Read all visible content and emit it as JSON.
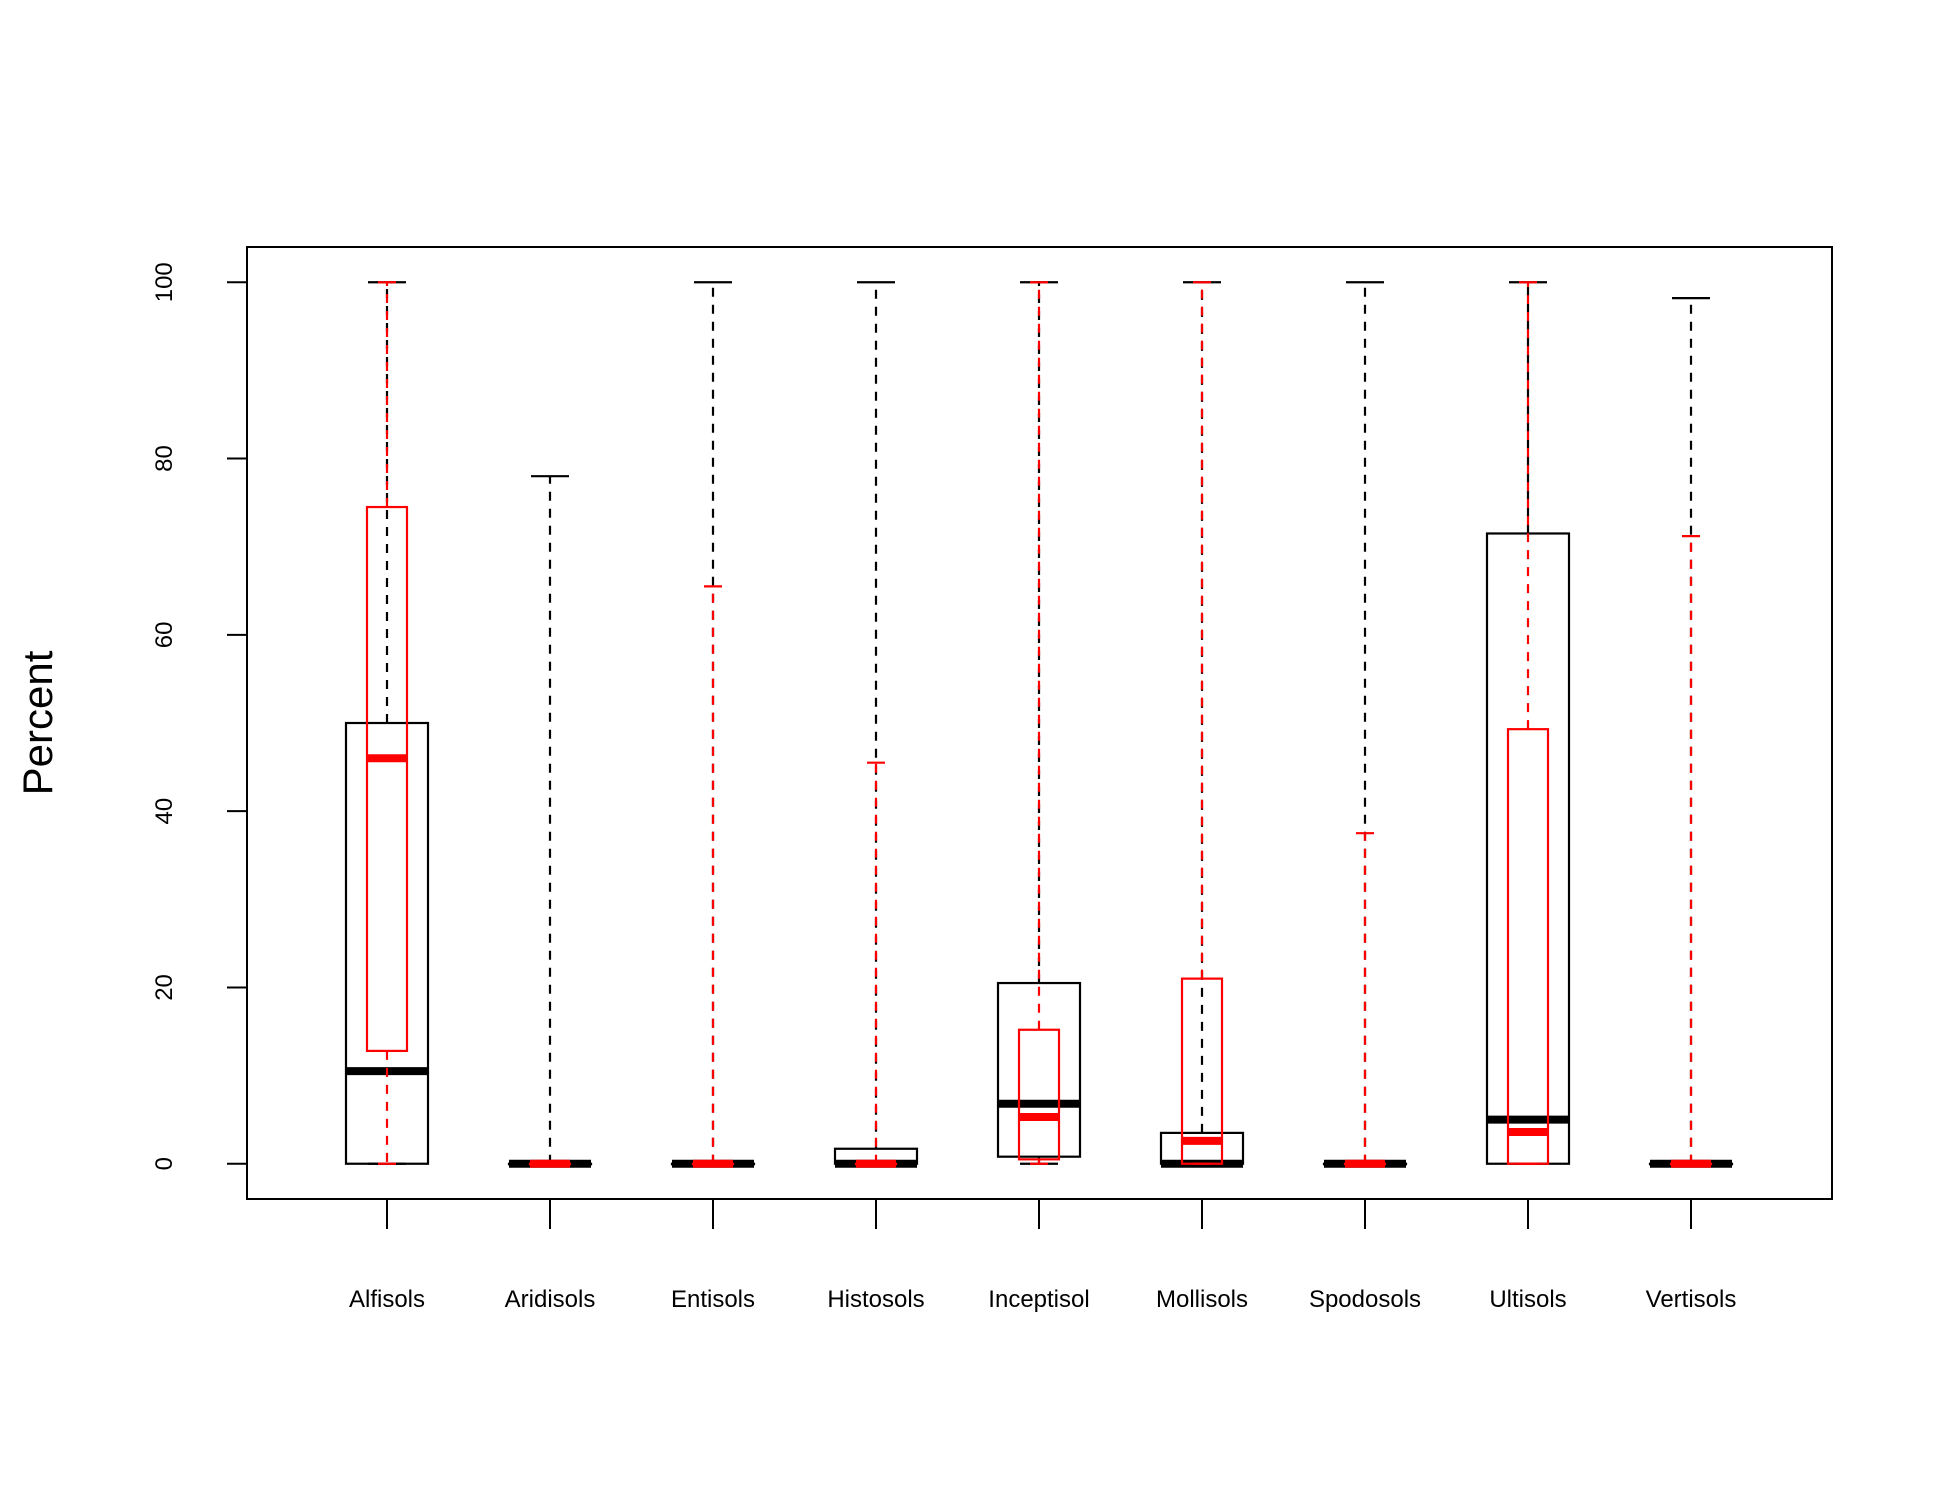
{
  "chart_data": {
    "type": "boxplot",
    "ylabel": "Percent",
    "ylim": [
      -4,
      104
    ],
    "yticks": [
      "0",
      "20",
      "40",
      "60",
      "80",
      "100"
    ],
    "grid": false,
    "categories": [
      "Alfisols",
      "Aridisols",
      "Entisols",
      "Histosols",
      "Inceptisol",
      "Mollisols",
      "Spodosols",
      "Ultisols",
      "Vertisols"
    ],
    "series": [
      {
        "color": "#000000",
        "boxes": [
          {
            "whisker_low": 0,
            "q1": 0,
            "median": 10.5,
            "q3": 50,
            "whisker_high": 100
          },
          {
            "whisker_low": 0,
            "q1": 0,
            "median": 0,
            "q3": 0,
            "whisker_high": 78
          },
          {
            "whisker_low": 0,
            "q1": 0,
            "median": 0,
            "q3": 0,
            "whisker_high": 100
          },
          {
            "whisker_low": 0,
            "q1": 0,
            "median": 0,
            "q3": 1.7,
            "whisker_high": 100
          },
          {
            "whisker_low": 0,
            "q1": 0.8,
            "median": 6.8,
            "q3": 20.5,
            "whisker_high": 100
          },
          {
            "whisker_low": 0,
            "q1": 0,
            "median": 0,
            "q3": 3.5,
            "whisker_high": 100
          },
          {
            "whisker_low": 0,
            "q1": 0,
            "median": 0,
            "q3": 0,
            "whisker_high": 100
          },
          {
            "whisker_low": 0,
            "q1": 0,
            "median": 5,
            "q3": 71.5,
            "whisker_high": 100
          },
          {
            "whisker_low": 0,
            "q1": 0,
            "median": 0,
            "q3": 0,
            "whisker_high": 98.2
          }
        ]
      },
      {
        "color": "#ff0000",
        "boxes": [
          {
            "whisker_low": 0,
            "q1": 12.8,
            "median": 46,
            "q3": 74.5,
            "whisker_high": 100
          },
          {
            "whisker_low": 0,
            "q1": 0,
            "median": 0,
            "q3": 0,
            "whisker_high": 0
          },
          {
            "whisker_low": 0,
            "q1": 0,
            "median": 0,
            "q3": 0,
            "whisker_high": 65.5
          },
          {
            "whisker_low": 0,
            "q1": 0,
            "median": 0,
            "q3": 0,
            "whisker_high": 45.5
          },
          {
            "whisker_low": 0,
            "q1": 0.5,
            "median": 5.3,
            "q3": 15.2,
            "whisker_high": 100
          },
          {
            "whisker_low": 0,
            "q1": 0,
            "median": 2.6,
            "q3": 21,
            "whisker_high": 100
          },
          {
            "whisker_low": 0,
            "q1": 0,
            "median": 0,
            "q3": 0,
            "whisker_high": 37.5
          },
          {
            "whisker_low": 0,
            "q1": 0,
            "median": 3.6,
            "q3": 49.3,
            "whisker_high": 100
          },
          {
            "whisker_low": 0,
            "q1": 0,
            "median": 0,
            "q3": 0,
            "whisker_high": 71.2
          }
        ]
      }
    ]
  }
}
